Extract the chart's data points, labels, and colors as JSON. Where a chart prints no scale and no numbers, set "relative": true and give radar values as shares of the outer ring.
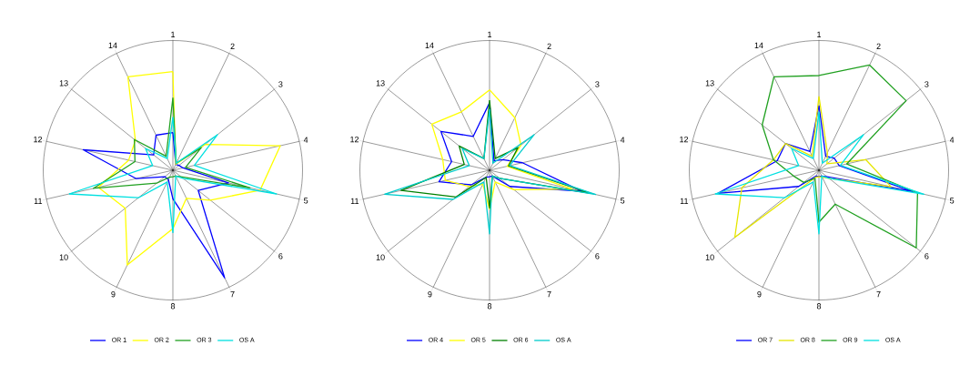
{
  "chart_data": [
    {
      "type": "radar",
      "categories": [
        "1",
        "2",
        "3",
        "4",
        "5",
        "6",
        "7",
        "8",
        "9",
        "10",
        "11",
        "12",
        "13",
        "14"
      ],
      "relative": true,
      "grid": "x",
      "legend": "bottom",
      "marker": "none",
      "series": [
        {
          "name": "OR 1",
          "color": "#0000ff",
          "values": [
            0.29,
            0.05,
            0.06,
            0.08,
            0.44,
            0.25,
            0.92,
            0.22,
            0.08,
            0.08,
            0.29,
            0.71,
            0.19,
            0.3
          ]
        },
        {
          "name": "OR 2",
          "color": "#ffff00",
          "values": [
            0.76,
            0.05,
            0.32,
            0.85,
            0.69,
            0.37,
            0.24,
            0.45,
            0.81,
            0.47,
            0.59,
            0.35,
            0.37,
            0.8
          ]
        },
        {
          "name": "OR 3",
          "color": "#20a020",
          "values": [
            0.56,
            0.06,
            0.28,
            0.1,
            0.61,
            0.08,
            0.05,
            0.05,
            0.06,
            0.16,
            0.63,
            0.3,
            0.38,
            0.12
          ]
        },
        {
          "name": "OS A",
          "color": "#00e0e0",
          "values": [
            0.41,
            0.06,
            0.44,
            0.17,
            0.82,
            0.1,
            0.05,
            0.48,
            0.1,
            0.34,
            0.82,
            0.16,
            0.27,
            0.1
          ]
        }
      ]
    },
    {
      "type": "radar",
      "categories": [
        "1",
        "2",
        "3",
        "4",
        "5",
        "6",
        "7",
        "8",
        "9",
        "10",
        "11",
        "12",
        "13",
        "14"
      ],
      "relative": true,
      "grid": "x",
      "legend": "bottom",
      "marker": "none",
      "series": [
        {
          "name": "OR 4",
          "color": "#0000ff",
          "values": [
            0.52,
            0.08,
            0.13,
            0.26,
            0.73,
            0.2,
            0.05,
            0.05,
            0.06,
            0.18,
            0.4,
            0.3,
            0.48,
            0.29
          ]
        },
        {
          "name": "OR 5",
          "color": "#ffff00",
          "values": [
            0.62,
            0.45,
            0.31,
            0.14,
            0.65,
            0.24,
            0.1,
            0.3,
            0.12,
            0.2,
            0.35,
            0.37,
            0.57,
            0.5
          ]
        },
        {
          "name": "OR 6",
          "color": "#008000",
          "values": [
            0.54,
            0.1,
            0.28,
            0.15,
            0.8,
            0.1,
            0.05,
            0.29,
            0.06,
            0.33,
            0.7,
            0.2,
            0.3,
            0.1
          ]
        },
        {
          "name": "OS A",
          "color": "#00cccc",
          "values": [
            0.47,
            0.06,
            0.44,
            0.16,
            0.84,
            0.1,
            0.05,
            0.49,
            0.1,
            0.36,
            0.83,
            0.16,
            0.27,
            0.1
          ]
        }
      ]
    },
    {
      "type": "radar",
      "categories": [
        "1",
        "2",
        "3",
        "4",
        "5",
        "6",
        "7",
        "8",
        "9",
        "10",
        "11",
        "12",
        "13",
        "14"
      ],
      "relative": true,
      "grid": "x",
      "legend": "bottom",
      "marker": "none",
      "series": [
        {
          "name": "OR 7",
          "color": "#0000ff",
          "values": [
            0.5,
            0.12,
            0.15,
            0.16,
            0.74,
            0.08,
            0.05,
            0.05,
            0.05,
            0.2,
            0.8,
            0.33,
            0.33,
            0.16
          ]
        },
        {
          "name": "OR 8",
          "color": "#e6e600",
          "values": [
            0.57,
            0.15,
            0.08,
            0.37,
            0.57,
            0.1,
            0.06,
            0.05,
            0.06,
            0.83,
            0.61,
            0.36,
            0.33,
            0.12
          ]
        },
        {
          "name": "OR 9",
          "color": "#20a020",
          "values": [
            0.73,
            0.9,
            0.86,
            0.22,
            0.78,
            0.96,
            0.29,
            0.4,
            0.07,
            0.15,
            0.2,
            0.36,
            0.56,
            0.8
          ]
        },
        {
          "name": "OS A",
          "color": "#00e0e0",
          "values": [
            0.45,
            0.06,
            0.44,
            0.17,
            0.83,
            0.1,
            0.05,
            0.49,
            0.1,
            0.34,
            0.82,
            0.16,
            0.27,
            0.1
          ]
        }
      ]
    }
  ]
}
